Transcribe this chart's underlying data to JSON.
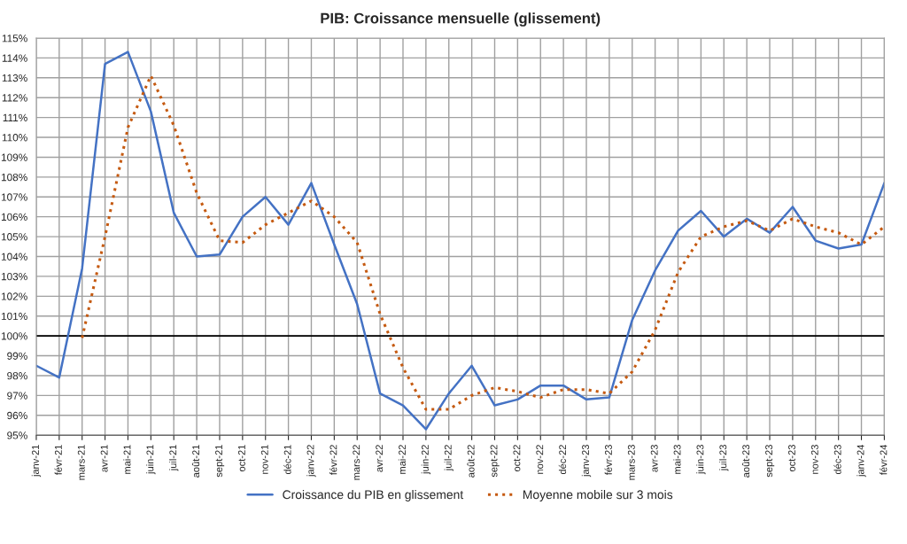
{
  "chart_data": {
    "type": "line",
    "title": "PIB: Croissance mensuelle (glissement)",
    "categories": [
      "janv-21",
      "févr-21",
      "mars-21",
      "avr-21",
      "mai-21",
      "juin-21",
      "juil-21",
      "août-21",
      "sept-21",
      "oct-21",
      "nov-21",
      "déc-21",
      "janv-22",
      "févr-22",
      "mars-22",
      "avr-22",
      "mai-22",
      "juin-22",
      "juil-22",
      "août-22",
      "sept-22",
      "oct-22",
      "nov-22",
      "déc-22",
      "janv-23",
      "févr-23",
      "mars-23",
      "avr-23",
      "mai-23",
      "juin-23",
      "juil-23",
      "août-23",
      "sept-23",
      "oct-23",
      "nov-23",
      "déc-23",
      "janv-24",
      "févr-24"
    ],
    "series": [
      {
        "name": "Croissance du PIB en glissement",
        "color": "#4472c4",
        "line_style": "solid",
        "values": [
          98.5,
          97.9,
          103.4,
          113.7,
          114.3,
          111.3,
          106.2,
          104.0,
          104.1,
          106.0,
          107.0,
          105.6,
          107.7,
          104.6,
          101.6,
          97.1,
          96.5,
          95.3,
          97.1,
          98.5,
          96.5,
          96.8,
          97.5,
          97.5,
          96.8,
          96.9,
          100.8,
          103.3,
          105.3,
          106.3,
          105.0,
          105.9,
          105.2,
          106.5,
          104.8,
          104.4,
          104.6,
          107.7
        ]
      },
      {
        "name": "Moyenne mobile sur 3 mois",
        "color": "#c55a11",
        "line_style": "dotted",
        "values": [
          null,
          null,
          99.9,
          105.0,
          110.5,
          113.1,
          110.6,
          107.2,
          104.8,
          104.7,
          105.6,
          106.2,
          106.8,
          106.0,
          104.7,
          101.1,
          98.4,
          96.3,
          96.3,
          97.0,
          97.4,
          97.2,
          96.9,
          97.3,
          97.3,
          97.1,
          98.2,
          100.3,
          103.2,
          105.0,
          105.5,
          105.8,
          105.3,
          105.9,
          105.5,
          105.2,
          104.6,
          105.5
        ]
      }
    ],
    "ylim": [
      95,
      115
    ],
    "yticks": [
      {
        "value": 95,
        "label": "95%"
      },
      {
        "value": 96,
        "label": "96%"
      },
      {
        "value": 97,
        "label": "97%"
      },
      {
        "value": 98,
        "label": "98%"
      },
      {
        "value": 99,
        "label": "99%"
      },
      {
        "value": 100,
        "label": "100%"
      },
      {
        "value": 101,
        "label": "101%"
      },
      {
        "value": 102,
        "label": "102%"
      },
      {
        "value": 103,
        "label": "103%"
      },
      {
        "value": 104,
        "label": "104%"
      },
      {
        "value": 105,
        "label": "105%"
      },
      {
        "value": 106,
        "label": "106%"
      },
      {
        "value": 107,
        "label": "107%"
      },
      {
        "value": 108,
        "label": "108%"
      },
      {
        "value": 109,
        "label": "109%"
      },
      {
        "value": 110,
        "label": "110%"
      },
      {
        "value": 111,
        "label": "111%"
      },
      {
        "value": 112,
        "label": "112%"
      },
      {
        "value": 113,
        "label": "113%"
      },
      {
        "value": 114,
        "label": "114%"
      },
      {
        "value": 115,
        "label": "115%"
      }
    ],
    "ref_lines": [
      {
        "axis": "y",
        "value": 100,
        "color": "#000000"
      }
    ],
    "grid": true,
    "legend": "bottom",
    "marker": "none"
  }
}
